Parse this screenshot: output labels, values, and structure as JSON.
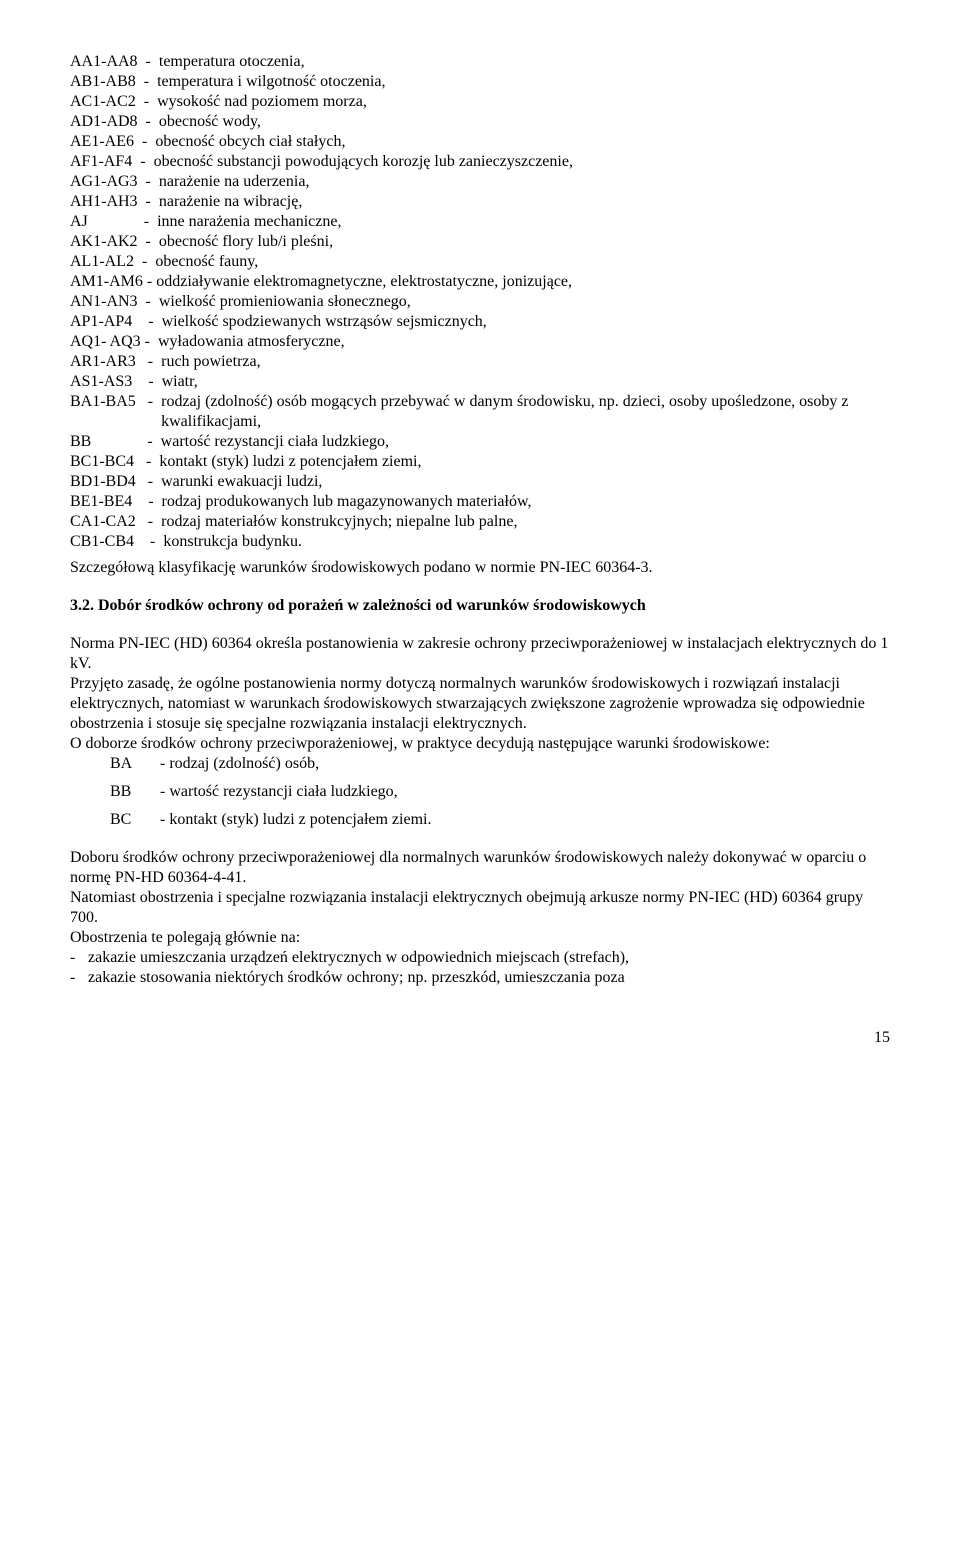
{
  "definitions": [
    {
      "code": "AA1-AA8",
      "sep": "  -  ",
      "text": "temperatura otoczenia,"
    },
    {
      "code": "AB1-AB8",
      "sep": "  -  ",
      "text": "temperatura i wilgotność otoczenia,"
    },
    {
      "code": "AC1-AC2",
      "sep": "  -  ",
      "text": "wysokość nad poziomem morza,"
    },
    {
      "code": "AD1-AD8",
      "sep": "  -  ",
      "text": "obecność wody,"
    },
    {
      "code": "AE1-AE6",
      "sep": "  -  ",
      "text": "obecność obcych ciał stałych,"
    },
    {
      "code": "AF1-AF4",
      "sep": "  -  ",
      "text": "obecność substancji powodujących korozję lub zanieczyszczenie,"
    },
    {
      "code": "AG1-AG3",
      "sep": "  -  ",
      "text": "narażenie na uderzenia,"
    },
    {
      "code": "AH1-AH3",
      "sep": "  -  ",
      "text": "narażenie na wibrację,"
    },
    {
      "code": "AJ",
      "sep": "              -  ",
      "text": "inne narażenia mechaniczne,"
    },
    {
      "code": "AK1-AK2",
      "sep": "  -  ",
      "text": "obecność flory lub/i pleśni,"
    },
    {
      "code": "AL1-AL2",
      "sep": "  -  ",
      "text": "obecność fauny,"
    },
    {
      "code": "AM1-AM6",
      "sep": " - ",
      "text": "oddziaływanie elektromagnetyczne, elektrostatyczne, jonizujące,"
    },
    {
      "code": "AN1-AN3",
      "sep": "  -  ",
      "text": "wielkość promieniowania słonecznego,"
    },
    {
      "code": "AP1-AP4",
      "sep": "    -  ",
      "text": "wielkość spodziewanych wstrząsów sejsmicznych,"
    },
    {
      "code": "AQ1- AQ3",
      "sep": " -  ",
      "text": "wyładowania atmosferyczne,"
    },
    {
      "code": "AR1-AR3",
      "sep": "   -  ",
      "text": "ruch powietrza,"
    },
    {
      "code": "AS1-AS3",
      "sep": "    -  ",
      "text": "wiatr,"
    },
    {
      "code": "BA1-BA5",
      "sep": "   -  ",
      "text": "rodzaj (zdolność) osób mogących przebywać w danym środowisku, np. dzieci, osoby upośledzone, osoby z kwalifikacjami,",
      "wrapIndented": true
    },
    {
      "code": "BB",
      "sep": "              -  ",
      "text": "wartość rezystancji ciała ludzkiego,"
    },
    {
      "code": "BC1-BC4",
      "sep": "   -  ",
      "text": "kontakt (styk) ludzi z potencjałem ziemi,"
    },
    {
      "code": "BD1-BD4",
      "sep": "   -  ",
      "text": "warunki ewakuacji ludzi,"
    },
    {
      "code": "BE1-BE4",
      "sep": "    -  ",
      "text": "rodzaj produkowanych lub magazynowanych materiałów,"
    },
    {
      "code": "CA1-CA2",
      "sep": "   -  ",
      "text": "rodzaj materiałów konstrukcyjnych; niepalne lub palne,"
    },
    {
      "code": "CB1-CB4",
      "sep": "    -  ",
      "text": "konstrukcja budynku."
    }
  ],
  "tail_para": "Szczegółową klasyfikację warunków środowiskowych podano w normie PN-IEC 60364-3.",
  "heading": "3.2. Dobór środków ochrony od porażeń w zależności od warunków środowiskowych",
  "para1": "Norma PN-IEC (HD) 60364 określa  postanowienia w zakresie ochrony przeciwporażeniowej w instalacjach elektrycznych do 1 kV.",
  "para2": "Przyjęto zasadę, że ogólne postanowienia normy dotyczą normalnych warunków środowiskowych i rozwiązań instalacji elektrycznych, natomiast w warunkach środowiskowych stwarzających zwiększone zagrożenie wprowadza się odpowiednie obostrzenia i stosuje się specjalne rozwiązania instalacji elektrycznych.",
  "para3": "O doborze środków ochrony przeciwporażeniowej, w praktyce decydują następujące warunki środowiskowe:",
  "sub_items": [
    {
      "code": "BA",
      "text": "-  rodzaj (zdolność) osób,"
    },
    {
      "code": "BB",
      "text": "-  wartość rezystancji ciała ludzkiego,"
    },
    {
      "code": "BC",
      "text": "-  kontakt (styk) ludzi z potencjałem ziemi."
    }
  ],
  "para4": "Doboru środków ochrony przeciwporażeniowej dla normalnych warunków środowiskowych należy dokonywać w oparciu o normę PN-HD 60364-4-41.",
  "para5": "Natomiast obostrzenia i specjalne rozwiązania instalacji elektrycznych obejmują arkusze normy PN-IEC (HD) 60364 grupy 700.",
  "para6": "Obostrzenia te polegają głównie na:",
  "dash_items": [
    "zakazie umieszczania urządzeń elektrycznych w odpowiednich miejscach (strefach),",
    "zakazie stosowania niektórych środków ochrony; np. przeszkód, umieszczania poza"
  ],
  "page_number": "15"
}
